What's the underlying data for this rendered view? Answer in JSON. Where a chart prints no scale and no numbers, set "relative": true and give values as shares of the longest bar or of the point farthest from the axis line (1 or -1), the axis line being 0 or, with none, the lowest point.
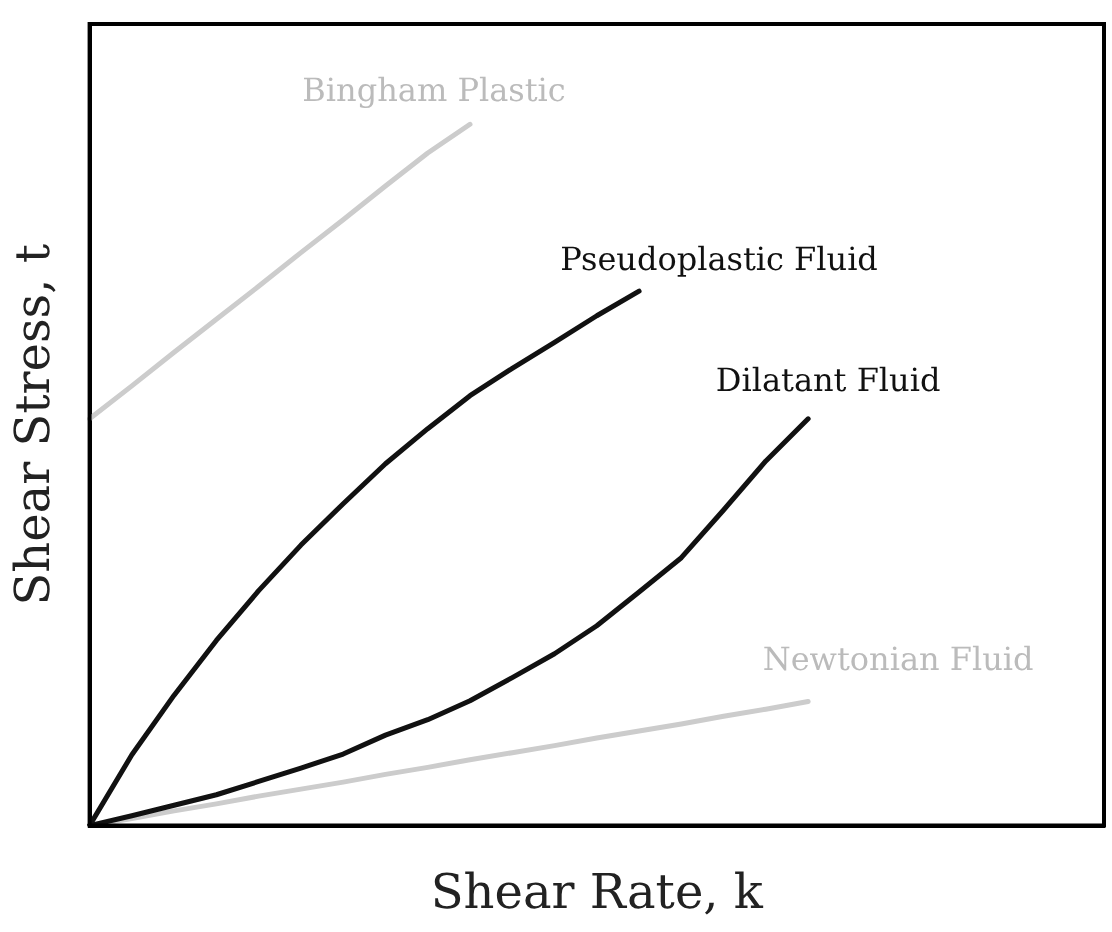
{
  "chart_data": {
    "type": "line",
    "relative": true,
    "xlabel": "Shear Rate, k",
    "ylabel": "Shear Stress, t",
    "grid": false,
    "legend": false,
    "marker": "none",
    "line_style": "solid",
    "categories": [
      null,
      null,
      null,
      null,
      null,
      null,
      null,
      null,
      null,
      null,
      null,
      null,
      null,
      null,
      null,
      null,
      null,
      null,
      null,
      null,
      null,
      null,
      null,
      null,
      null
    ],
    "series": [
      {
        "name": "Bingham Plastic",
        "color": "#cccccc",
        "values": [
          0.58,
          0.627,
          0.675,
          0.722,
          0.769,
          0.817,
          0.864,
          0.912,
          0.959,
          1.0,
          null,
          null,
          null,
          null,
          null,
          null,
          null,
          null,
          null,
          null,
          null,
          null,
          null,
          null,
          null
        ]
      },
      {
        "name": "Pseudoplastic Fluid",
        "color": "#111111",
        "values": [
          0,
          0.101,
          0.186,
          0.264,
          0.335,
          0.4,
          0.459,
          0.516,
          0.566,
          0.613,
          0.652,
          0.689,
          0.727,
          0.762,
          null,
          null,
          null,
          null,
          null,
          null,
          null,
          null,
          null,
          null,
          null
        ]
      },
      {
        "name": "Dilatant Fluid",
        "color": "#111111",
        "values": [
          0,
          0.014,
          0.029,
          0.044,
          0.063,
          0.082,
          0.102,
          0.129,
          0.151,
          0.178,
          0.211,
          0.245,
          0.285,
          0.333,
          0.382,
          0.45,
          0.52,
          0.58,
          null,
          null,
          null,
          null,
          null,
          null,
          null
        ]
      },
      {
        "name": "Newtonian Fluid",
        "color": "#cccccc",
        "values": [
          0,
          0.01,
          0.021,
          0.031,
          0.042,
          0.052,
          0.062,
          0.073,
          0.083,
          0.094,
          0.104,
          0.114,
          0.125,
          0.135,
          0.145,
          0.156,
          0.166,
          0.177,
          null,
          null,
          null,
          null,
          null,
          null,
          null
        ]
      }
    ]
  }
}
